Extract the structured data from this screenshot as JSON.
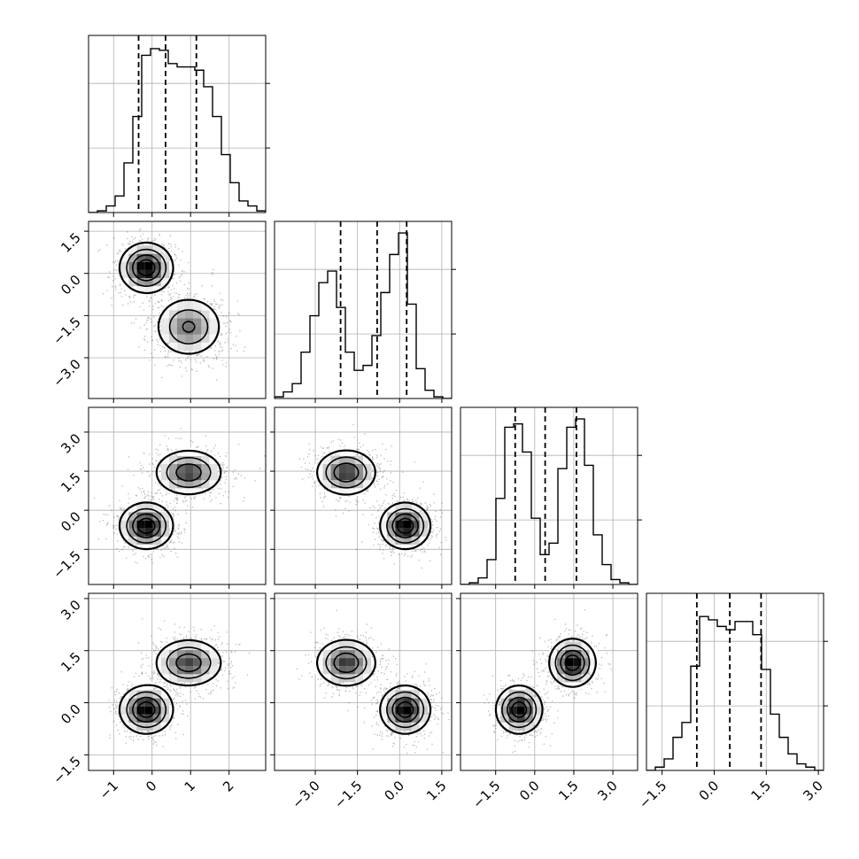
{
  "chart_data": {
    "type": "corner",
    "colors": {
      "line": "#000000",
      "grid": "#b0b0b0",
      "density": "#000000"
    },
    "grid": true,
    "variables": [
      {
        "lim": [
          -1.65,
          2.95
        ],
        "ticks": [
          -1,
          0,
          1,
          2
        ],
        "tick_labels": [
          "−1",
          "0",
          "1",
          "2"
        ]
      },
      {
        "lim": [
          -4.45,
          1.85
        ],
        "ticks": [
          -3.0,
          -1.5,
          0.0,
          1.5
        ],
        "tick_labels": [
          "−3.0",
          "−1.5",
          "0.0",
          "1.5"
        ]
      },
      {
        "lim": [
          -2.85,
          3.95
        ],
        "ticks": [
          -1.5,
          0.0,
          1.5,
          3.0
        ],
        "tick_labels": [
          "−1.5",
          "0.0",
          "1.5",
          "3.0"
        ]
      },
      {
        "lim": [
          -1.95,
          3.15
        ],
        "ticks": [
          -1.5,
          0.0,
          1.5,
          3.0
        ],
        "tick_labels": [
          "−1.5",
          "0.0",
          "1.5",
          "3.0"
        ]
      }
    ],
    "histograms": [
      {
        "edges_start": -1.65,
        "bin_width": 0.23,
        "max": 1.0,
        "counts": [
          0,
          0.01,
          0.04,
          0.1,
          0.3,
          0.58,
          0.95,
          0.99,
          0.98,
          0.9,
          0.88,
          0.88,
          0.86,
          0.76,
          0.58,
          0.35,
          0.18,
          0.07,
          0.04,
          0.01,
          0
        ],
        "quantiles": [
          -0.35,
          0.35,
          1.15
        ]
      },
      {
        "edges_start": -4.45,
        "bin_width": 0.315,
        "max": 1.0,
        "counts": [
          0.01,
          0.04,
          0.09,
          0.28,
          0.5,
          0.7,
          0.77,
          0.55,
          0.28,
          0.17,
          0.2,
          0.38,
          0.64,
          0.87,
          1.0,
          0.57,
          0.18,
          0.05,
          0.01,
          0
        ],
        "quantiles": [
          -2.1,
          -0.8,
          0.25
        ]
      },
      {
        "edges_start": -2.85,
        "bin_width": 0.34,
        "max": 1.0,
        "counts": [
          0,
          0.01,
          0.04,
          0.15,
          0.52,
          0.95,
          0.97,
          0.8,
          0.4,
          0.18,
          0.25,
          0.7,
          0.95,
          1.0,
          0.72,
          0.3,
          0.12,
          0.03,
          0.01,
          0
        ],
        "quantiles": [
          -0.75,
          0.4,
          1.6
        ]
      },
      {
        "edges_start": -1.95,
        "bin_width": 0.255,
        "max": 1.0,
        "counts": [
          0,
          0.02,
          0.07,
          0.2,
          0.29,
          0.63,
          0.93,
          0.91,
          0.87,
          0.85,
          0.9,
          0.9,
          0.82,
          0.61,
          0.34,
          0.2,
          0.1,
          0.04,
          0.02,
          0
        ],
        "quantiles": [
          -0.5,
          0.45,
          1.35
        ]
      }
    ],
    "components": [
      {
        "weight": 0.5,
        "mean": [
          -0.15,
          0.2,
          -0.6,
          -0.2
        ],
        "sd": [
          0.35,
          0.45,
          0.45,
          0.35
        ]
      },
      {
        "weight": 0.5,
        "mean": [
          0.95,
          -1.9,
          1.45,
          1.15
        ],
        "sd": [
          0.45,
          0.55,
          0.45,
          0.35
        ]
      }
    ]
  }
}
